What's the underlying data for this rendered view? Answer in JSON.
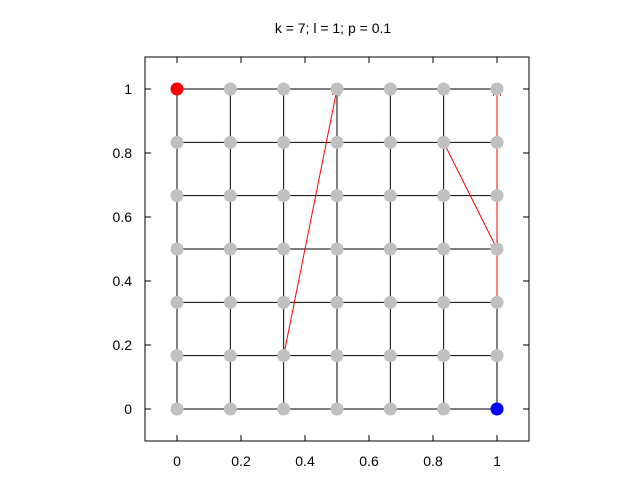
{
  "chart_data": {
    "type": "scatter",
    "title": "k = 7; l = 1; p = 0.1",
    "xlabel": "",
    "ylabel": "",
    "xlim": [
      -0.1,
      1.1
    ],
    "ylim": [
      -0.1,
      1.1
    ],
    "x_ticks": [
      0,
      0.2,
      0.4,
      0.6,
      0.8,
      1
    ],
    "x_tick_labels": [
      "0",
      "0.2",
      "0.4",
      "0.6",
      "0.8",
      "1"
    ],
    "y_ticks": [
      0,
      0.2,
      0.4,
      0.6,
      0.8,
      1
    ],
    "y_tick_labels": [
      "0",
      "0.2",
      "0.4",
      "0.6",
      "0.8",
      "1"
    ],
    "grid_points_per_side": 7,
    "grid_coordinates": [
      0,
      0.1667,
      0.3333,
      0.5,
      0.6667,
      0.8333,
      1
    ],
    "lattice_color": "#000000",
    "node_color": "#c0c0c0",
    "start_node": {
      "x": 0,
      "y": 1,
      "color": "#ff0000"
    },
    "end_node": {
      "x": 1,
      "y": 0,
      "color": "#0000ff"
    },
    "shortcuts": [
      {
        "from": [
          0.3333,
          0.1667
        ],
        "to": [
          0.5,
          1
        ]
      },
      {
        "from": [
          0.8333,
          0.8333
        ],
        "to": [
          1,
          0.5
        ]
      },
      {
        "from": [
          1,
          0.3333
        ],
        "to": [
          1,
          1
        ]
      }
    ],
    "shortcut_color": "#ff0000",
    "grid": false,
    "legend": "none"
  }
}
